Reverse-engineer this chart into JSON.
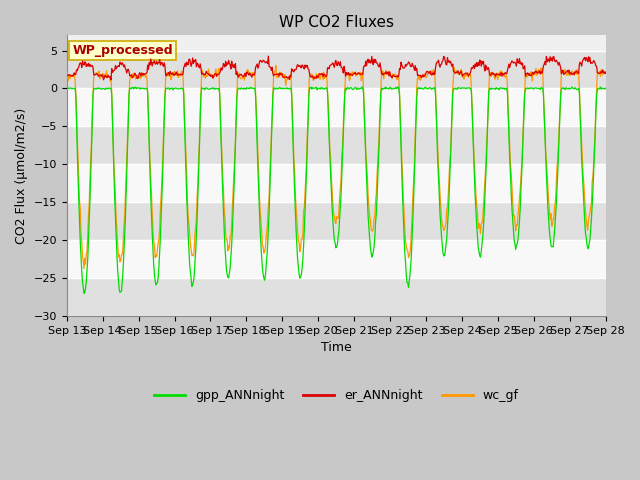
{
  "title": "WP CO2 Fluxes",
  "xlabel": "Time",
  "ylabel": "CO2 Flux (μmol/m2/s)",
  "ylim": [
    -30,
    7
  ],
  "yticks": [
    -30,
    -25,
    -20,
    -15,
    -10,
    -5,
    0,
    5
  ],
  "legend_labels": [
    "gpp_ANNnight",
    "er_ANNnight",
    "wc_gf"
  ],
  "legend_colors": [
    "#00dd00",
    "#dd0000",
    "#ff9900"
  ],
  "annotation_text": "WP_processed",
  "annotation_color": "#aa0000",
  "annotation_bg": "#ffffcc",
  "annotation_edge": "#ccaa00",
  "n_days": 15,
  "start_day": 13,
  "points_per_day": 48,
  "fig_bg": "#c8c8c8",
  "plot_bg": "#f0f0f0",
  "band_colors": [
    "#e0e0e0",
    "#f8f8f8"
  ],
  "grid_color": "#ffffff"
}
